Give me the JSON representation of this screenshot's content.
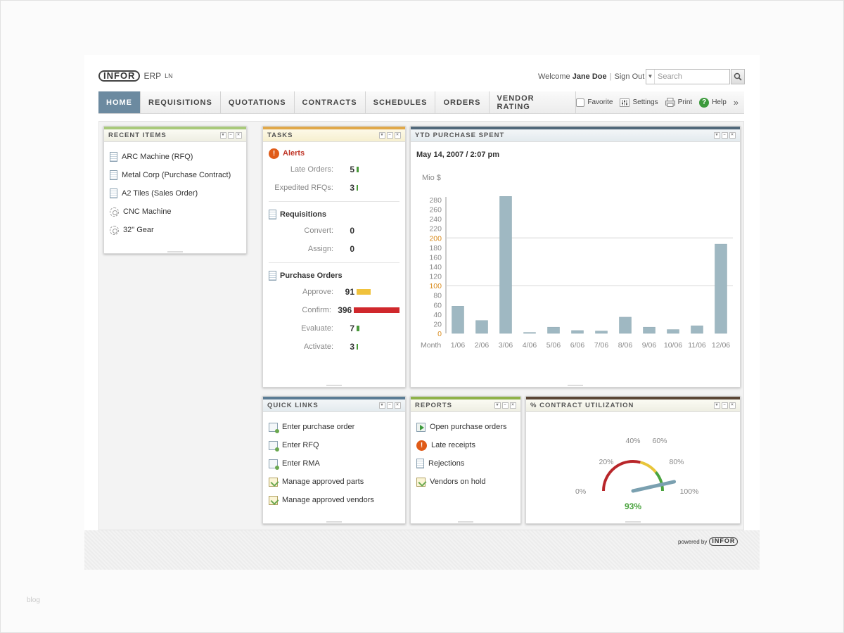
{
  "header": {
    "logo": "INFOR",
    "product": "ERP",
    "product_suffix": "LN",
    "welcome_prefix": "Welcome",
    "user_name": "Jane Doe",
    "sign_out": "Sign Out",
    "search_placeholder": "Search"
  },
  "nav": {
    "tabs": [
      {
        "label": "HOME",
        "active": true
      },
      {
        "label": "REQUISITIONS"
      },
      {
        "label": "QUOTATIONS"
      },
      {
        "label": "CONTRACTS"
      },
      {
        "label": "SCHEDULES"
      },
      {
        "label": "ORDERS"
      },
      {
        "label": "VENDOR RATING"
      }
    ],
    "tools": {
      "favorite": "Favorite",
      "settings": "Settings",
      "print": "Print",
      "help": "Help"
    }
  },
  "recent": {
    "title": "RECENT ITEMS",
    "items": [
      {
        "label": "ARC Machine (RFQ)",
        "icon": "document-icon"
      },
      {
        "label": "Metal Corp (Purchase Contract)",
        "icon": "document-icon"
      },
      {
        "label": "A2 Tiles (Sales Order)",
        "icon": "document-icon"
      },
      {
        "label": "CNC Machine",
        "icon": "gear-icon"
      },
      {
        "label": "32\" Gear",
        "icon": "gear-icon"
      }
    ]
  },
  "tasks": {
    "title": "TASKS",
    "alerts": {
      "title": "Alerts",
      "rows": [
        {
          "label": "Late Orders:",
          "value": "5"
        },
        {
          "label": "Expedited RFQs:",
          "value": "3"
        }
      ]
    },
    "requisitions": {
      "title": "Requisitions",
      "rows": [
        {
          "label": "Convert:",
          "value": "0"
        },
        {
          "label": "Assign:",
          "value": "0"
        }
      ]
    },
    "purchase_orders": {
      "title": "Purchase Orders",
      "rows": [
        {
          "label": "Approve:",
          "value": "91"
        },
        {
          "label": "Confirm:",
          "value": "396"
        },
        {
          "label": "Evaluate:",
          "value": "7"
        },
        {
          "label": "Activate:",
          "value": "3"
        }
      ]
    },
    "colors": {
      "green": "#4a9a3a",
      "yellow": "#f0c23c",
      "red": "#d0282c"
    }
  },
  "ytd": {
    "title": "YTD PURCHASE SPENT",
    "subtitle": "May 14, 2007 / 2:07 pm"
  },
  "chart_data": {
    "type": "bar",
    "title": "",
    "ylabel": "Mio $",
    "xlabel": "Month",
    "categories": [
      "1/06",
      "2/06",
      "3/06",
      "4/06",
      "5/06",
      "6/06",
      "7/06",
      "8/06",
      "9/06",
      "10/06",
      "11/06",
      "12/06"
    ],
    "values": [
      57,
      27,
      287,
      2,
      13,
      6,
      5,
      34,
      13,
      8,
      16,
      187
    ],
    "ylim": [
      0,
      280
    ],
    "yticks": [
      0,
      20,
      40,
      60,
      80,
      100,
      120,
      140,
      160,
      180,
      200,
      220,
      240,
      260,
      280
    ],
    "highlight_ticks": [
      0,
      100,
      200
    ],
    "grid_lines": [
      100,
      200
    ],
    "bar_color": "#9fb8c2",
    "highlight_color": "#d98a1a",
    "grid": "partial"
  },
  "quick_links": {
    "title": "QUICK LINKS",
    "items": [
      {
        "label": "Enter purchase order",
        "icon": "form-icon"
      },
      {
        "label": "Enter RFQ",
        "icon": "form-icon"
      },
      {
        "label": "Enter RMA",
        "icon": "form-icon"
      },
      {
        "label": "Manage approved parts",
        "icon": "notepad-icon"
      },
      {
        "label": "Manage approved vendors",
        "icon": "notepad-icon"
      }
    ]
  },
  "reports": {
    "title": "REPORTS",
    "items": [
      {
        "label": "Open purchase orders",
        "icon": "arrow-icon"
      },
      {
        "label": "Late receipts",
        "icon": "alert-icon"
      },
      {
        "label": "Rejections",
        "icon": "document-icon"
      },
      {
        "label": "Vendors on hold",
        "icon": "notepad-icon"
      }
    ]
  },
  "utilization": {
    "title": "% CONTRACT UTILIZATION",
    "value_percent": 93,
    "value_label": "93%",
    "scale_labels": [
      "0%",
      "20%",
      "40%",
      "60%",
      "80%",
      "100%"
    ],
    "colors": {
      "red": "#b8262a",
      "yellow": "#e8c53a",
      "green": "#4aa33e",
      "needle": "#7aa0b0"
    }
  },
  "footer": {
    "powered_by": "powered by",
    "logo": "INFOR"
  },
  "watermark": "blog"
}
